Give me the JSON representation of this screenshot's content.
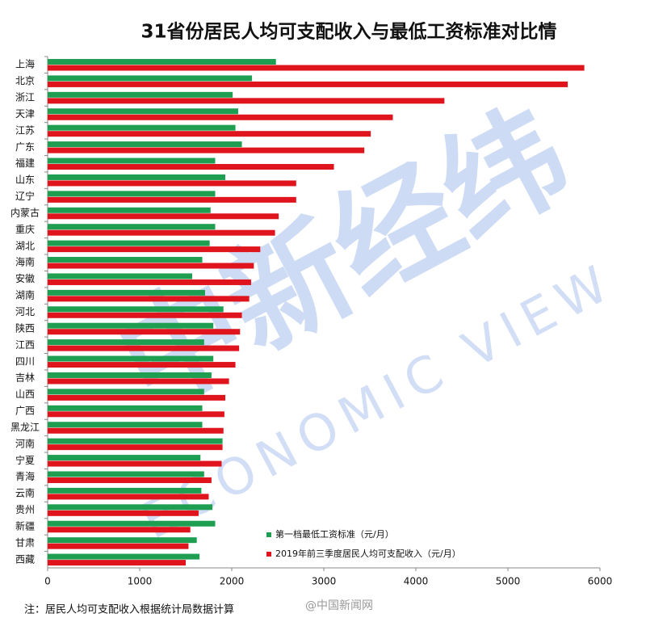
{
  "chart_data": {
    "type": "hbar",
    "title": "31省份居民人均可支配收入与最低工资标准对比情",
    "categories": [
      "上海",
      "北京",
      "浙江",
      "天津",
      "江苏",
      "广东",
      "福建",
      "山东",
      "辽宁",
      "内蒙古",
      "重庆",
      "湖北",
      "海南",
      "安徽",
      "湖南",
      "河北",
      "陕西",
      "江西",
      "四川",
      "吉林",
      "山西",
      "广西",
      "黑龙江",
      "河南",
      "宁夏",
      "青海",
      "云南",
      "贵州",
      "新疆",
      "甘肃",
      "西藏"
    ],
    "series": [
      {
        "name": "第一档最低工资标准（元/月）",
        "color": "#1e9e50",
        "values": [
          2480,
          2220,
          2010,
          2070,
          2040,
          2110,
          1820,
          1930,
          1820,
          1770,
          1820,
          1760,
          1680,
          1570,
          1710,
          1910,
          1800,
          1700,
          1800,
          1780,
          1700,
          1680,
          1680,
          1900,
          1660,
          1700,
          1670,
          1790,
          1820,
          1620,
          1650
        ]
      },
      {
        "name": "2019年前三季度居民人均可支配收入（元/月）",
        "color": "#e0141c",
        "values": [
          5830,
          5650,
          4310,
          3750,
          3510,
          3440,
          3110,
          2700,
          2700,
          2510,
          2470,
          2310,
          2240,
          2210,
          2190,
          2110,
          2090,
          2080,
          2040,
          1970,
          1930,
          1920,
          1910,
          1900,
          1890,
          1780,
          1750,
          1640,
          1550,
          1530,
          1500
        ]
      }
    ],
    "xlim": [
      0,
      6000
    ],
    "xticks": [
      0,
      1000,
      2000,
      3000,
      4000,
      5000,
      6000
    ],
    "note": "注：居民人均可支配收入根据统计局数据计算",
    "watermarks": [
      "中新经纬",
      "ECONOMIC VIEW",
      "@中国新闻网"
    ]
  }
}
